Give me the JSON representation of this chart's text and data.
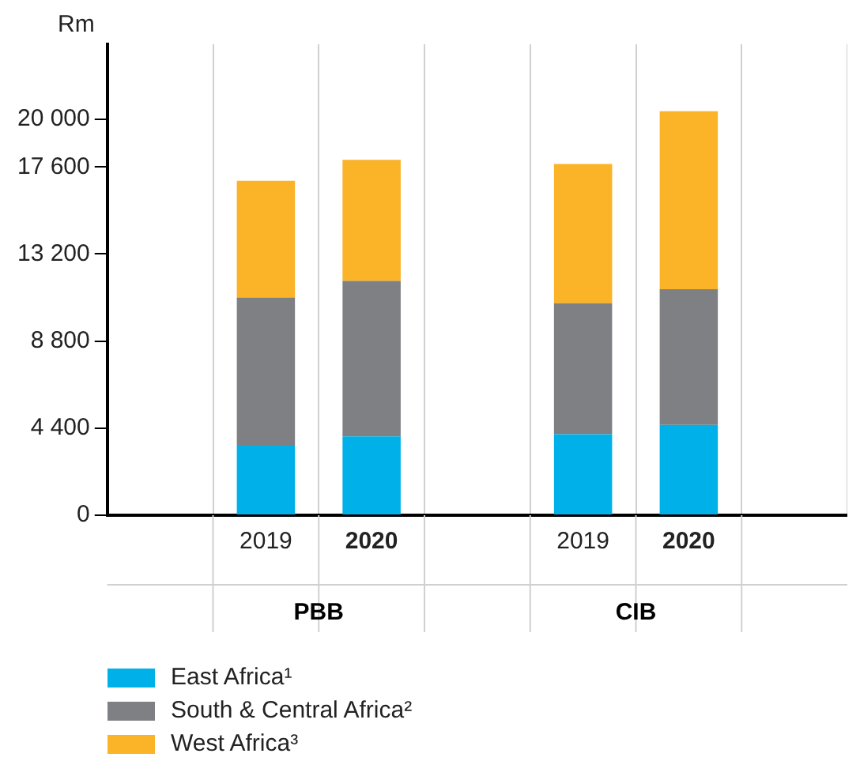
{
  "chart_data": {
    "type": "bar",
    "stacked": true,
    "ylabel": "Rm",
    "categories": [
      null,
      "2019",
      "2020",
      null,
      "2019",
      "2020",
      null
    ],
    "series": [
      {
        "name": "East Africa¹",
        "color": "#00b0e8",
        "values": [
          null,
          3550,
          3980,
          null,
          4090,
          4560,
          null
        ]
      },
      {
        "name": "South & Central Africa²",
        "color": "#7f8084",
        "values": [
          null,
          7450,
          7860,
          null,
          6620,
          6860,
          null
        ]
      },
      {
        "name": "West Africa³",
        "color": "#fbb328",
        "values": [
          null,
          5900,
          6120,
          null,
          7040,
          9000,
          null
        ]
      }
    ],
    "annotations": [
      "PBB",
      "CIB"
    ],
    "ylim": [
      0,
      23800
    ],
    "yticks": [
      0,
      {
        "value": 4400,
        "label": "4 400"
      },
      {
        "value": 8800,
        "label": "8 800"
      },
      {
        "value": 13200,
        "label": "13 200"
      },
      {
        "value": 17600,
        "label": "17 600"
      },
      {
        "value": 20000,
        "label": "20 000"
      }
    ],
    "grid": "x",
    "legend": "bottom"
  }
}
